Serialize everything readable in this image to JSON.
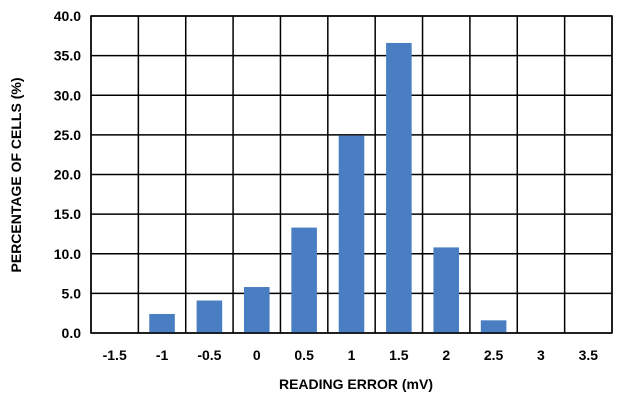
{
  "chart_data": {
    "type": "bar",
    "xlabel": "READING ERROR (mV)",
    "ylabel": "PERCENTAGE OF CELLS (%)",
    "categories": [
      "-1.5",
      "-1",
      "-0.5",
      "0",
      "0.5",
      "1",
      "1.5",
      "2",
      "2.5",
      "3",
      "3.5"
    ],
    "values": [
      0,
      2.4,
      4.1,
      5.8,
      13.3,
      24.9,
      36.6,
      10.8,
      1.6,
      0,
      0
    ],
    "ylim": [
      0,
      40
    ],
    "yticks": [
      "0.0",
      "5.0",
      "10.0",
      "15.0",
      "20.0",
      "25.0",
      "30.0",
      "35.0",
      "40.0"
    ],
    "grid": true,
    "bar_color": "#4a7ec2"
  }
}
